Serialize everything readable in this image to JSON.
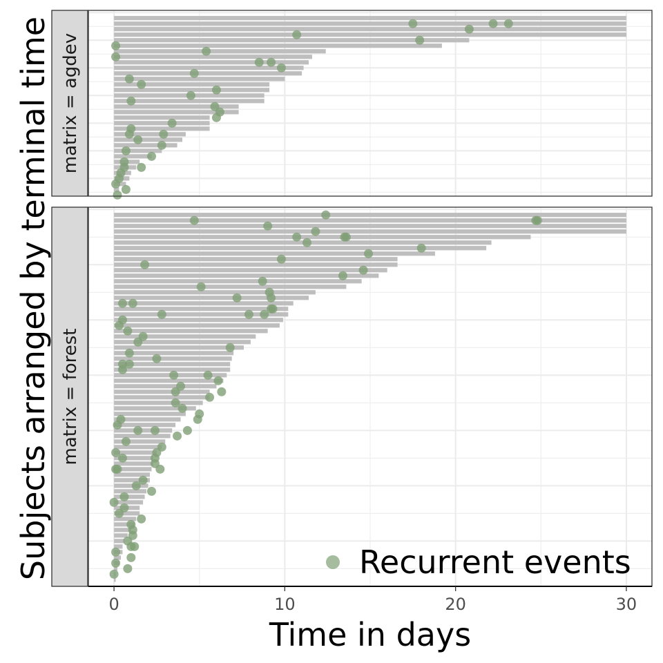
{
  "chart_data": {
    "type": "scatter",
    "xlabel": "Time in days",
    "ylabel": "Subjects arranged by terminal time",
    "xlim": [
      -1.5,
      31.5
    ],
    "x_ticks": [
      0,
      10,
      20,
      30
    ],
    "grid": true,
    "legend": {
      "placement": "bottom-right",
      "entries": [
        {
          "label": "Recurrent events",
          "color": "#8fac86",
          "shape": "circle"
        }
      ]
    },
    "colors": {
      "bar": "#bebebe",
      "point": "#7f9f76",
      "strip": "#d9d9d9"
    },
    "panels": [
      {
        "strip": "matrix = agdev",
        "subjects": 32,
        "terminal_times": [
          30,
          30,
          30,
          30,
          20.8,
          19.2,
          12.4,
          11.6,
          11.4,
          11.1,
          11.0,
          10.0,
          9.1,
          9.1,
          8.8,
          8.8,
          7.3,
          7.3,
          5.6,
          5.6,
          5.6,
          4.2,
          4.0,
          3.7,
          2.8,
          2.2,
          1.5,
          1.3,
          1.0,
          0.9,
          0.7,
          0.3
        ],
        "events": [
          {
            "time": 17.5,
            "subject": 2
          },
          {
            "time": 22.2,
            "subject": 2
          },
          {
            "time": 23.1,
            "subject": 2
          },
          {
            "time": 20.8,
            "subject": 3
          },
          {
            "time": 10.7,
            "subject": 4
          },
          {
            "time": 17.9,
            "subject": 5
          },
          {
            "time": 0.1,
            "subject": 6
          },
          {
            "time": 5.4,
            "subject": 7
          },
          {
            "time": 0.1,
            "subject": 8
          },
          {
            "time": 8.5,
            "subject": 9
          },
          {
            "time": 9.2,
            "subject": 9
          },
          {
            "time": 9.8,
            "subject": 10
          },
          {
            "time": 4.7,
            "subject": 11
          },
          {
            "time": 0.9,
            "subject": 12
          },
          {
            "time": 1.6,
            "subject": 13
          },
          {
            "time": 6.0,
            "subject": 14
          },
          {
            "time": 4.5,
            "subject": 15
          },
          {
            "time": 1.0,
            "subject": 16
          },
          {
            "time": 5.9,
            "subject": 17
          },
          {
            "time": 6.2,
            "subject": 18
          },
          {
            "time": 6.0,
            "subject": 19
          },
          {
            "time": 3.4,
            "subject": 20
          },
          {
            "time": 1.0,
            "subject": 21
          },
          {
            "time": 0.9,
            "subject": 22
          },
          {
            "time": 2.9,
            "subject": 22
          },
          {
            "time": 1.4,
            "subject": 23
          },
          {
            "time": 2.8,
            "subject": 24
          },
          {
            "time": 0.7,
            "subject": 25
          },
          {
            "time": 2.2,
            "subject": 26
          },
          {
            "time": 0.6,
            "subject": 27
          },
          {
            "time": 0.6,
            "subject": 28
          },
          {
            "time": 1.6,
            "subject": 28
          },
          {
            "time": 0.4,
            "subject": 29
          },
          {
            "time": 0.3,
            "subject": 30
          },
          {
            "time": 0.1,
            "subject": 31
          },
          {
            "time": 0.7,
            "subject": 32
          },
          {
            "time": 0.2,
            "subject": 33
          }
        ]
      },
      {
        "strip": "matrix = forest",
        "subjects": 67,
        "terminal_times": [
          30,
          30,
          30,
          30,
          24.4,
          22.1,
          21.8,
          18.8,
          16.6,
          16.6,
          16.0,
          15.5,
          14.5,
          13.6,
          11.8,
          11.4,
          10.5,
          10.2,
          10.2,
          9.9,
          9.7,
          9.0,
          8.3,
          8.0,
          7.6,
          7.0,
          6.9,
          6.8,
          6.8,
          6.6,
          6.4,
          6.0,
          5.6,
          5.6,
          5.2,
          4.8,
          4.2,
          3.9,
          3.6,
          3.4,
          3.3,
          3.0,
          2.8,
          2.5,
          2.3,
          2.3,
          2.2,
          2.1,
          2.1,
          2.0,
          1.9,
          1.8,
          1.7,
          1.5,
          1.5,
          1.3,
          1.2,
          1.0,
          0.8,
          0.6,
          0.5,
          0.5,
          0.4,
          0.3,
          0.2,
          0.1,
          0.1
        ],
        "events": [
          {
            "time": 12.4,
            "subject": 1
          },
          {
            "time": 4.7,
            "subject": 2
          },
          {
            "time": 24.7,
            "subject": 2
          },
          {
            "time": 24.8,
            "subject": 2
          },
          {
            "time": 9.0,
            "subject": 3
          },
          {
            "time": 11.8,
            "subject": 4
          },
          {
            "time": 10.7,
            "subject": 5
          },
          {
            "time": 13.5,
            "subject": 5
          },
          {
            "time": 13.6,
            "subject": 5
          },
          {
            "time": 11.3,
            "subject": 6
          },
          {
            "time": 18.0,
            "subject": 7
          },
          {
            "time": 14.9,
            "subject": 8
          },
          {
            "time": 9.8,
            "subject": 9
          },
          {
            "time": 1.8,
            "subject": 10
          },
          {
            "time": 14.6,
            "subject": 11
          },
          {
            "time": 13.4,
            "subject": 12
          },
          {
            "time": 8.7,
            "subject": 13
          },
          {
            "time": 5.1,
            "subject": 14
          },
          {
            "time": 9.1,
            "subject": 15
          },
          {
            "time": 7.2,
            "subject": 16
          },
          {
            "time": 9.2,
            "subject": 16
          },
          {
            "time": 0.5,
            "subject": 17
          },
          {
            "time": 1.1,
            "subject": 17
          },
          {
            "time": 9.3,
            "subject": 18
          },
          {
            "time": 9.2,
            "subject": 18
          },
          {
            "time": 2.8,
            "subject": 19
          },
          {
            "time": 7.9,
            "subject": 19
          },
          {
            "time": 8.8,
            "subject": 19
          },
          {
            "time": 0.5,
            "subject": 20
          },
          {
            "time": 0.3,
            "subject": 21
          },
          {
            "time": 0.8,
            "subject": 22
          },
          {
            "time": 1.7,
            "subject": 23
          },
          {
            "time": 1.4,
            "subject": 24
          },
          {
            "time": 6.8,
            "subject": 25
          },
          {
            "time": 0.9,
            "subject": 26
          },
          {
            "time": 2.5,
            "subject": 27
          },
          {
            "time": 0.5,
            "subject": 28
          },
          {
            "time": 0.9,
            "subject": 28
          },
          {
            "time": 0.5,
            "subject": 29
          },
          {
            "time": 3.5,
            "subject": 30
          },
          {
            "time": 5.5,
            "subject": 30
          },
          {
            "time": 6.1,
            "subject": 31
          },
          {
            "time": 3.9,
            "subject": 32
          },
          {
            "time": 3.6,
            "subject": 33
          },
          {
            "time": 6.3,
            "subject": 33
          },
          {
            "time": 5.6,
            "subject": 34
          },
          {
            "time": 3.6,
            "subject": 35
          },
          {
            "time": 4.0,
            "subject": 36
          },
          {
            "time": 5.0,
            "subject": 37
          },
          {
            "time": 0.4,
            "subject": 38
          },
          {
            "time": 4.9,
            "subject": 38
          },
          {
            "time": 0.2,
            "subject": 39
          },
          {
            "time": 1.4,
            "subject": 40
          },
          {
            "time": 2.4,
            "subject": 40
          },
          {
            "time": 4.3,
            "subject": 40
          },
          {
            "time": 3.7,
            "subject": 41
          },
          {
            "time": 0.7,
            "subject": 42
          },
          {
            "time": 2.8,
            "subject": 43
          },
          {
            "time": 0.1,
            "subject": 44
          },
          {
            "time": 2.5,
            "subject": 44
          },
          {
            "time": 0.5,
            "subject": 45
          },
          {
            "time": 2.4,
            "subject": 45
          },
          {
            "time": 2.4,
            "subject": 46
          },
          {
            "time": 0.1,
            "subject": 47
          },
          {
            "time": 0.2,
            "subject": 47
          },
          {
            "time": 2.7,
            "subject": 47
          },
          {
            "time": 1.7,
            "subject": 49
          },
          {
            "time": 1.3,
            "subject": 50
          },
          {
            "time": 2.2,
            "subject": 51
          },
          {
            "time": 0.6,
            "subject": 52
          },
          {
            "time": 0.0,
            "subject": 53
          },
          {
            "time": 0.6,
            "subject": 54
          },
          {
            "time": 0.3,
            "subject": 55
          },
          {
            "time": 1.6,
            "subject": 56
          },
          {
            "time": 1.0,
            "subject": 57
          },
          {
            "time": 1.1,
            "subject": 58
          },
          {
            "time": 1.1,
            "subject": 59
          },
          {
            "time": 0.8,
            "subject": 60
          },
          {
            "time": 1.0,
            "subject": 61
          },
          {
            "time": 1.2,
            "subject": 61
          },
          {
            "time": 0.1,
            "subject": 62
          },
          {
            "time": 1.0,
            "subject": 63
          },
          {
            "time": 0.1,
            "subject": 64
          },
          {
            "time": 0.8,
            "subject": 65
          },
          {
            "time": 0.0,
            "subject": 66
          }
        ]
      }
    ]
  }
}
